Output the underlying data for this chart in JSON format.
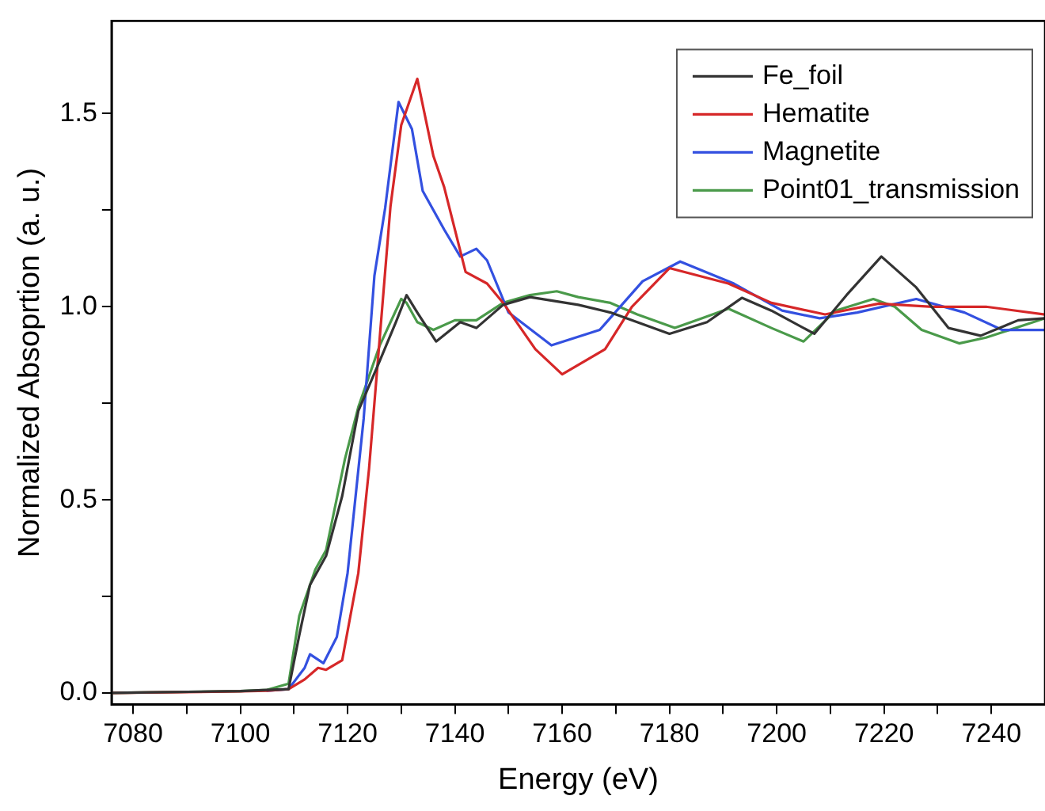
{
  "chart_data": {
    "type": "line",
    "xlabel": "Energy (eV)",
    "ylabel": "Normalized Absoprtion (a. u.)",
    "xlim": [
      7076,
      7250
    ],
    "xticks": [
      7080,
      {
        "value": 7090,
        "label": null
      },
      7100,
      {
        "value": 7110,
        "label": null
      },
      7120,
      {
        "value": 7130,
        "label": null
      },
      7140,
      {
        "value": 7150,
        "label": null
      },
      7160,
      {
        "value": 7170,
        "label": null
      },
      7180,
      {
        "value": 7190,
        "label": null
      },
      7200,
      {
        "value": 7210,
        "label": null
      },
      7220,
      {
        "value": 7230,
        "label": null
      },
      7240
    ],
    "ylim": [
      -0.03,
      1.74
    ],
    "yticks": [
      {
        "value": 0,
        "label": "0.0"
      },
      {
        "value": 0.25,
        "label": null
      },
      0.5,
      {
        "value": 0.75,
        "label": null
      },
      {
        "value": 1,
        "label": "1.0"
      },
      {
        "value": 1.25,
        "label": null
      },
      1.5
    ],
    "grid": false,
    "legend": "top right",
    "marker": "none",
    "line_style": "solid",
    "series": [
      {
        "name": "Fe_foil",
        "color": "#333333",
        "x": [
          7076,
          7100,
          7105,
          7109,
          7111,
          7113,
          7116,
          7119,
          7122,
          7126,
          7129,
          7131,
          7133,
          7136.5,
          7141,
          7144,
          7149,
          7154,
          7163,
          7169,
          7180,
          7187,
          7193.5,
          7199,
          7207,
          7213,
          7219.5,
          7226,
          7232,
          7238,
          7245,
          7250
        ],
        "values": [
          0,
          0.005,
          0.008,
          0.01,
          0.15,
          0.28,
          0.355,
          0.51,
          0.73,
          0.86,
          0.96,
          1.03,
          0.985,
          0.91,
          0.96,
          0.945,
          1.005,
          1.025,
          1.005,
          0.985,
          0.93,
          0.96,
          1.023,
          0.99,
          0.93,
          1.03,
          1.13,
          1.05,
          0.945,
          0.925,
          0.965,
          0.97
        ]
      },
      {
        "name": "Hematite",
        "color": "#d62728",
        "x": [
          7076,
          7100,
          7105,
          7109,
          7112,
          7114.5,
          7116,
          7119,
          7122,
          7124,
          7126,
          7128,
          7130,
          7133,
          7136,
          7138,
          7142,
          7146,
          7149,
          7155,
          7160,
          7168,
          7173,
          7180,
          7191,
          7199,
          7209,
          7219,
          7229,
          7239,
          7250
        ],
        "values": [
          0,
          0.004,
          0.006,
          0.01,
          0.035,
          0.065,
          0.06,
          0.085,
          0.31,
          0.58,
          0.92,
          1.26,
          1.47,
          1.59,
          1.39,
          1.31,
          1.09,
          1.06,
          1.01,
          0.89,
          0.825,
          0.89,
          1.0,
          1.1,
          1.06,
          1.01,
          0.98,
          1.008,
          1.0,
          1.0,
          0.98
        ]
      },
      {
        "name": "Magnetite",
        "color": "#3350e0",
        "x": [
          7105,
          7109,
          7112,
          7113,
          7115.5,
          7118,
          7120,
          7123,
          7125,
          7127,
          7129.5,
          7132,
          7134,
          7138,
          7141,
          7144,
          7146,
          7150,
          7158,
          7167,
          7175,
          7182,
          7192,
          7201,
          7208,
          7215,
          7226,
          7235,
          7242,
          7250
        ],
        "values": [
          0.006,
          0.01,
          0.065,
          0.1,
          0.077,
          0.145,
          0.31,
          0.71,
          1.08,
          1.255,
          1.53,
          1.46,
          1.3,
          1.2,
          1.13,
          1.15,
          1.12,
          0.985,
          0.9,
          0.94,
          1.066,
          1.117,
          1.06,
          0.99,
          0.97,
          0.985,
          1.02,
          0.985,
          0.94,
          0.94
        ]
      },
      {
        "name": "Point01_transmission",
        "color": "#4a9a4a",
        "x": [
          7076,
          7100,
          7105,
          7109,
          7111,
          7114,
          7116,
          7119.5,
          7122,
          7126,
          7130,
          7131,
          7133,
          7136,
          7140,
          7144,
          7149,
          7154,
          7159,
          7163,
          7169,
          7174,
          7181,
          7186,
          7191,
          7199,
          7205,
          7211,
          7218,
          7222,
          7227,
          7234,
          7239,
          7250
        ],
        "values": [
          0,
          0.005,
          0.008,
          0.024,
          0.2,
          0.32,
          0.37,
          0.605,
          0.74,
          0.9,
          1.02,
          1.01,
          0.96,
          0.94,
          0.965,
          0.965,
          1.01,
          1.03,
          1.04,
          1.025,
          1.01,
          0.98,
          0.945,
          0.97,
          0.995,
          0.945,
          0.91,
          0.99,
          1.02,
          1.0,
          0.94,
          0.905,
          0.92,
          0.97
        ]
      }
    ]
  }
}
